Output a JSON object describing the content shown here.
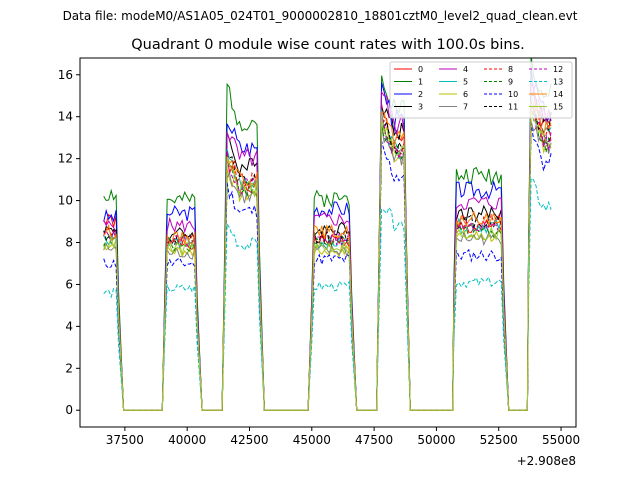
{
  "chart_data": {
    "type": "line",
    "supertitle": "Data file: modeM0/AS1A05_024T01_9000002810_18801cztM0_level2_quad_clean.evt",
    "title": "Quadrant 0 module wise count rates with 100.0s bins.",
    "xlabel": "",
    "ylabel": "",
    "x_offset_label": "+2.908e8",
    "xlim": [
      35700,
      55600
    ],
    "ylim": [
      -0.8,
      16.8
    ],
    "x_ticks": [
      37500,
      40000,
      42500,
      45000,
      47500,
      50000,
      52500,
      55000
    ],
    "x_tick_labels": [
      "37500",
      "40000",
      "42500",
      "45000",
      "47500",
      "50000",
      "52500",
      "55000"
    ],
    "y_ticks": [
      0,
      2,
      4,
      6,
      8,
      10,
      12,
      14,
      16
    ],
    "y_tick_labels": [
      "0",
      "2",
      "4",
      "6",
      "8",
      "10",
      "12",
      "14",
      "16"
    ],
    "grid": false,
    "legend_position": "top-right",
    "segments": [
      {
        "start": 36650,
        "end": 37150
      },
      {
        "start": 39200,
        "end": 40300
      },
      {
        "start": 41600,
        "end": 42800
      },
      {
        "start": 45100,
        "end": 46500
      },
      {
        "start": 47800,
        "end": 48700
      },
      {
        "start": 50800,
        "end": 52600
      },
      {
        "start": 53800,
        "end": 54600
      }
    ],
    "gaps": [
      {
        "start": 37450,
        "end": 39000
      },
      {
        "start": 40600,
        "end": 41400
      },
      {
        "start": 43100,
        "end": 44850
      },
      {
        "start": 46800,
        "end": 47600
      },
      {
        "start": 48950,
        "end": 50650
      },
      {
        "start": 52900,
        "end": 53650
      }
    ],
    "series": [
      {
        "name": "0",
        "color": "#ff0000",
        "dash": false,
        "levels": [
          9.0,
          8.0,
          10.5,
          8.1,
          12.7,
          8.7,
          13.5
        ]
      },
      {
        "name": "1",
        "color": "#008000",
        "dash": false,
        "levels": [
          10.3,
          10.0,
          13.8,
          10.1,
          14.5,
          11.2,
          15.0
        ]
      },
      {
        "name": "2",
        "color": "#0000ff",
        "dash": false,
        "levels": [
          9.2,
          9.4,
          12.5,
          9.6,
          13.8,
          10.5,
          14.2
        ]
      },
      {
        "name": "3",
        "color": "#000000",
        "dash": false,
        "levels": [
          8.6,
          8.4,
          11.6,
          8.7,
          13.3,
          9.4,
          13.8
        ]
      },
      {
        "name": "4",
        "color": "#bf00bf",
        "dash": false,
        "levels": [
          8.8,
          8.8,
          12.0,
          9.1,
          13.6,
          9.9,
          14.0
        ]
      },
      {
        "name": "5",
        "color": "#00bfbf",
        "dash": false,
        "levels": [
          8.2,
          8.0,
          10.8,
          8.0,
          12.5,
          8.8,
          13.2
        ]
      },
      {
        "name": "6",
        "color": "#bfbf00",
        "dash": false,
        "levels": [
          7.9,
          7.6,
          10.3,
          7.6,
          12.2,
          8.3,
          12.8
        ]
      },
      {
        "name": "7",
        "color": "#808080",
        "dash": false,
        "levels": [
          7.7,
          7.5,
          10.2,
          7.6,
          12.0,
          8.2,
          12.6
        ]
      },
      {
        "name": "8",
        "color": "#ff0000",
        "dash": true,
        "levels": [
          8.5,
          8.1,
          10.9,
          8.2,
          12.5,
          9.0,
          13.2
        ]
      },
      {
        "name": "9",
        "color": "#008000",
        "dash": true,
        "levels": [
          8.1,
          7.9,
          10.6,
          8.0,
          12.2,
          8.6,
          12.8
        ]
      },
      {
        "name": "10",
        "color": "#0000ff",
        "dash": true,
        "levels": [
          7.0,
          7.0,
          9.5,
          7.2,
          11.2,
          7.4,
          11.8
        ]
      },
      {
        "name": "11",
        "color": "#000000",
        "dash": true,
        "levels": [
          8.4,
          8.1,
          10.9,
          8.3,
          12.6,
          9.0,
          13.1
        ]
      },
      {
        "name": "12",
        "color": "#bf00bf",
        "dash": true,
        "levels": [
          8.3,
          8.1,
          10.7,
          8.2,
          12.4,
          8.7,
          12.9
        ]
      },
      {
        "name": "13",
        "color": "#00bfbf",
        "dash": true,
        "levels": [
          5.6,
          5.8,
          7.9,
          5.9,
          8.9,
          6.1,
          9.7
        ]
      },
      {
        "name": "14",
        "color": "#ff8000",
        "dash": false,
        "levels": [
          8.5,
          8.2,
          11.1,
          8.5,
          12.8,
          9.1,
          13.4
        ]
      },
      {
        "name": "15",
        "color": "#9acd32",
        "dash": false,
        "levels": [
          8.0,
          7.7,
          10.6,
          7.8,
          12.3,
          8.4,
          12.9
        ]
      }
    ]
  }
}
